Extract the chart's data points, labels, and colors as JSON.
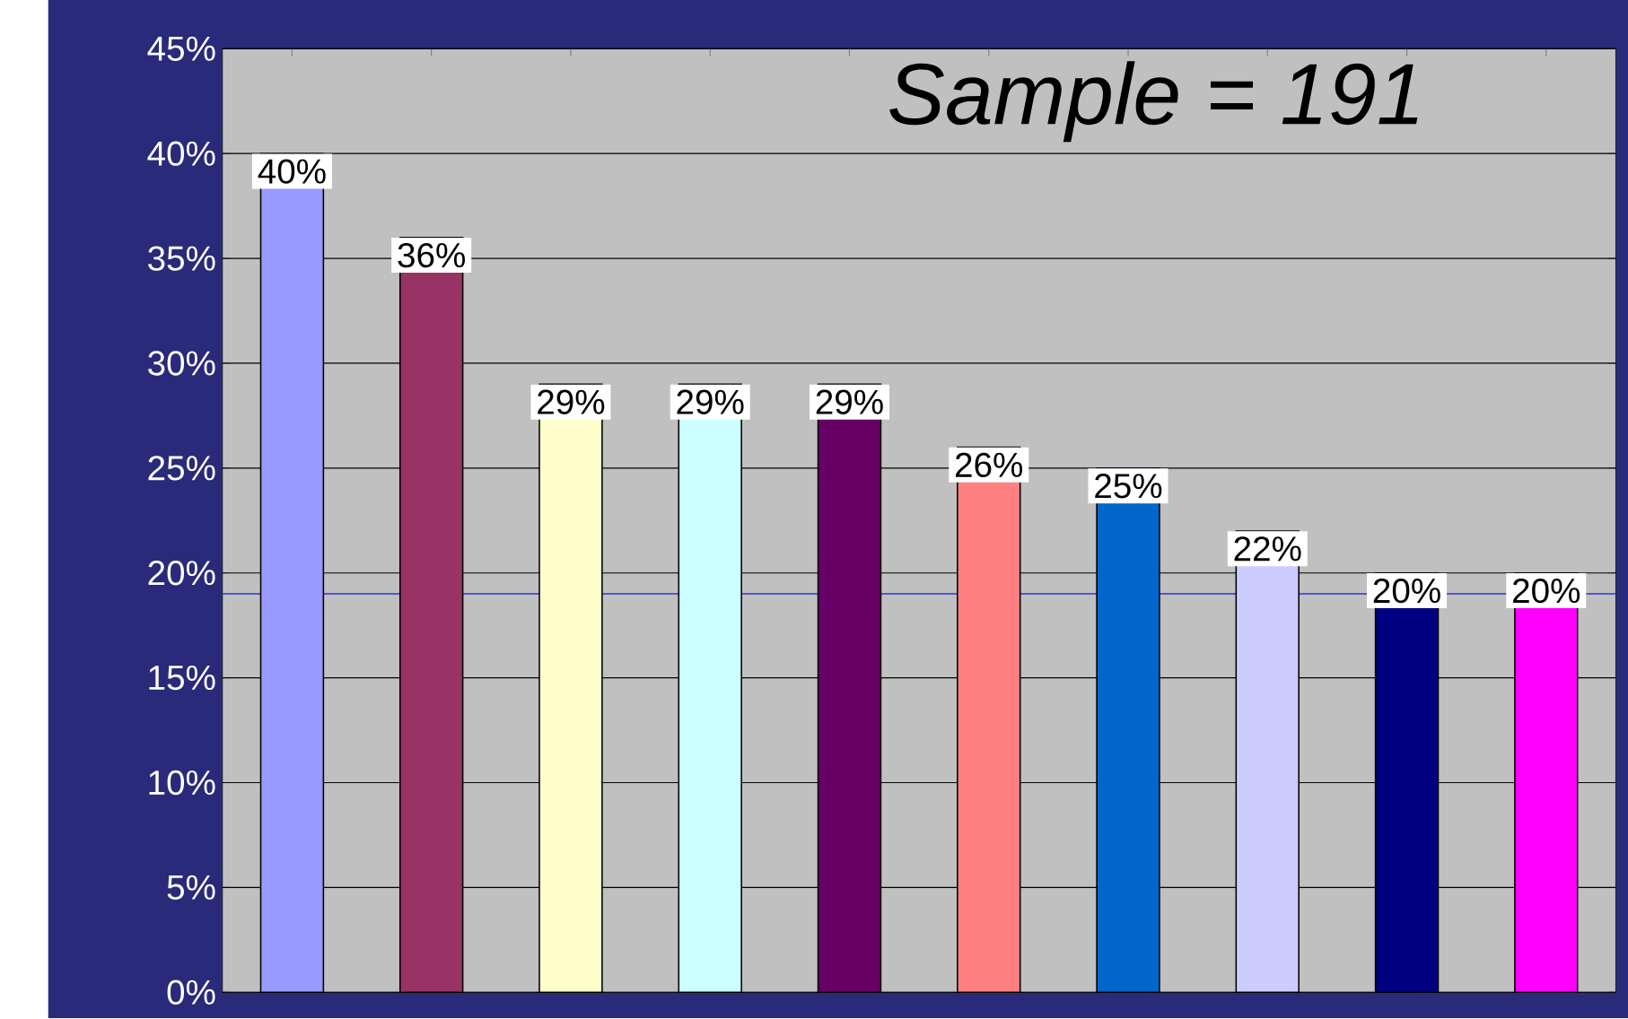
{
  "chart_data": {
    "type": "bar",
    "categories": [
      null,
      null,
      null,
      null,
      null,
      null,
      null,
      null,
      null,
      null
    ],
    "values": [
      40,
      36,
      29,
      29,
      29,
      26,
      25,
      22,
      20,
      20
    ],
    "value_labels": [
      "40%",
      "36%",
      "29%",
      "29%",
      "29%",
      "26%",
      "25%",
      "22%",
      "20%",
      "20%"
    ],
    "colors": [
      "#9999ff",
      "#993366",
      "#ffffcc",
      "#ccffff",
      "#660066",
      "#ff8080",
      "#0066cc",
      "#ccccff",
      "#000080",
      "#ff00ff"
    ],
    "ylim": [
      0,
      45
    ],
    "yticks": [
      {
        "value": 0,
        "label": "0%"
      },
      {
        "value": 5,
        "label": "5%"
      },
      {
        "value": 10,
        "label": "10%"
      },
      {
        "value": 15,
        "label": "15%"
      },
      {
        "value": 20,
        "label": "20%"
      },
      {
        "value": 25,
        "label": "25%"
      },
      {
        "value": 30,
        "label": "30%"
      },
      {
        "value": 35,
        "label": "35%"
      },
      {
        "value": 40,
        "label": "40%"
      },
      {
        "value": 45,
        "label": "45%"
      }
    ],
    "grid": "y",
    "ref_lines": [
      {
        "axis": "y",
        "value": 19,
        "color": "#3333cc"
      }
    ],
    "annotations": [
      "*Sample = 191*"
    ]
  }
}
